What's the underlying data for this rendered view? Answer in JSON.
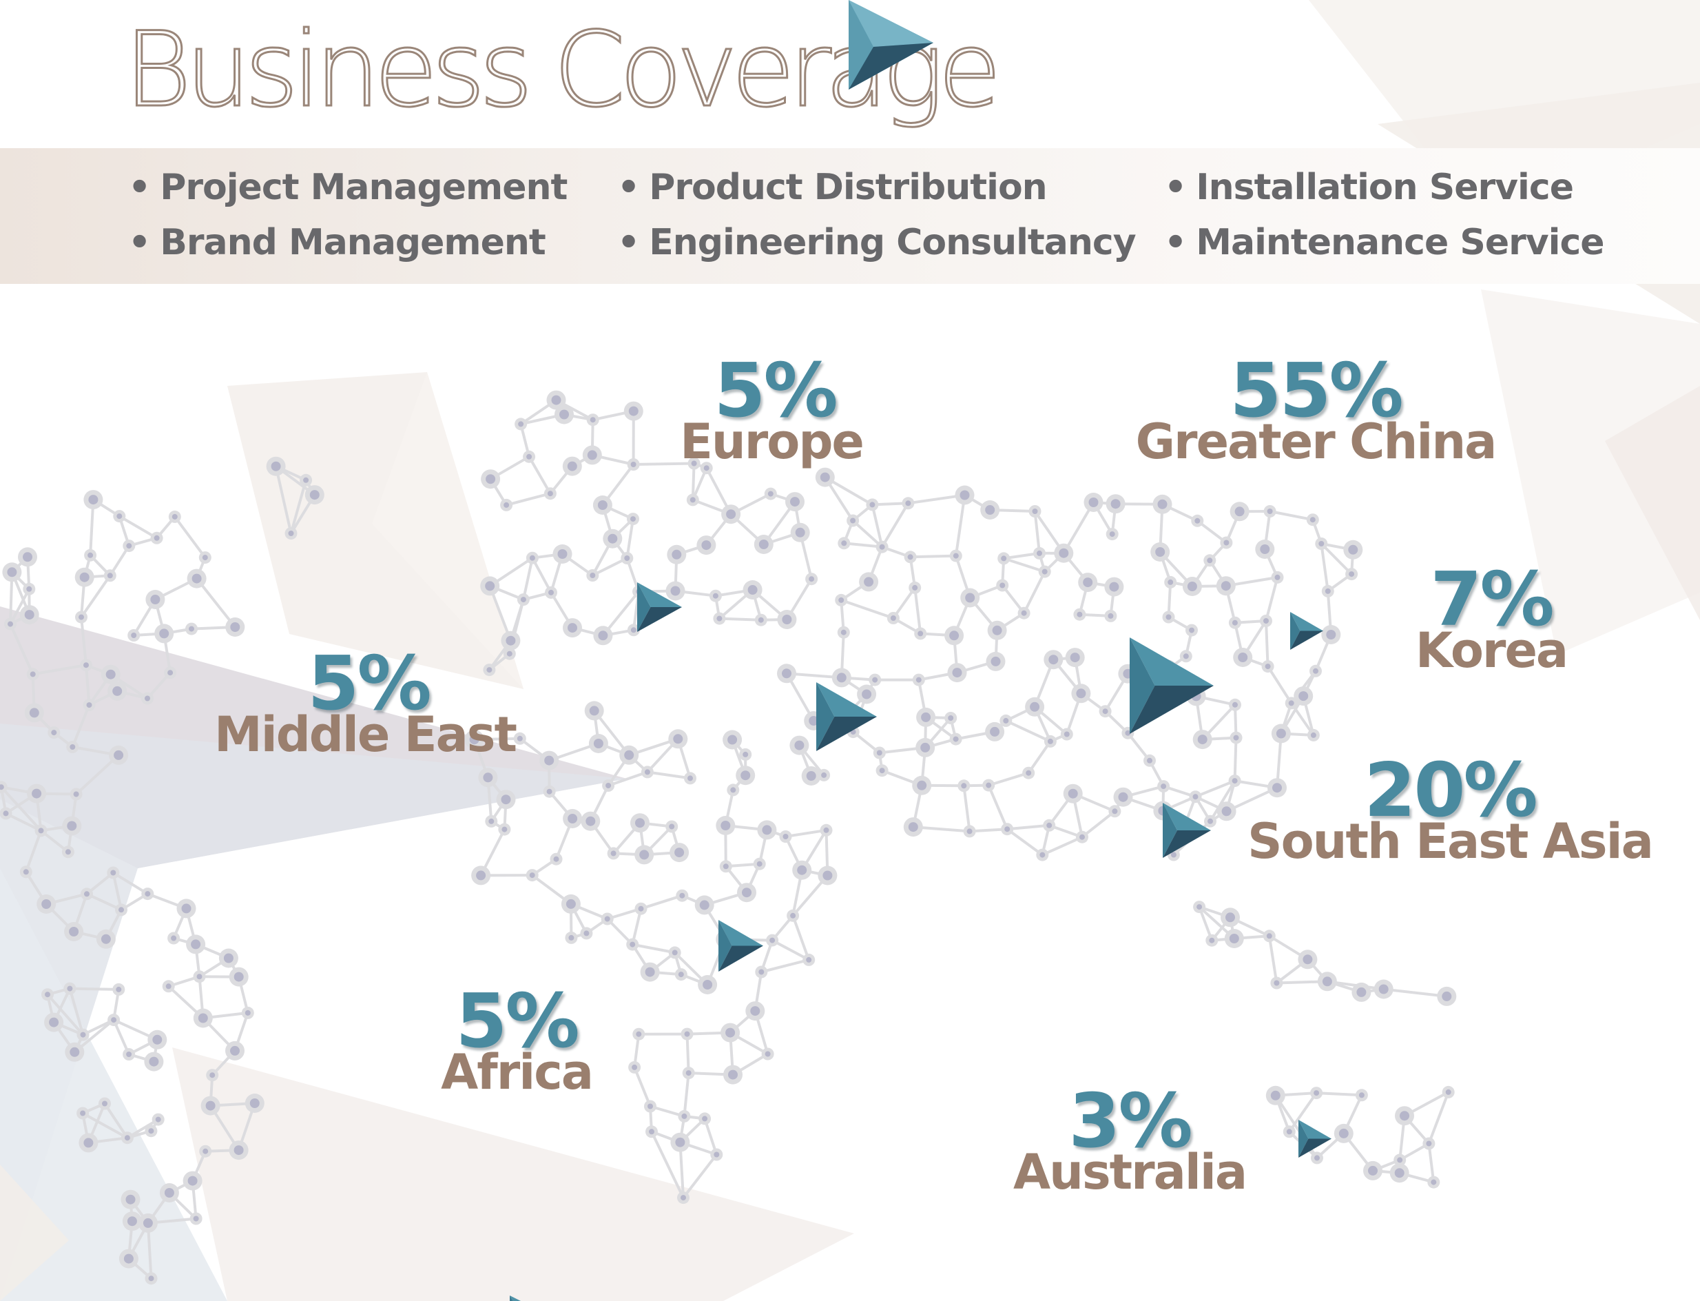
{
  "title": "Business Coverage",
  "services": [
    [
      "Project Management",
      "Brand Management"
    ],
    [
      "Product Distribution",
      "Engineering Consultancy"
    ],
    [
      "Installation Service",
      "Maintenance Service"
    ]
  ],
  "bullet": "•",
  "regions": [
    {
      "name": "Europe",
      "share": "5%"
    },
    {
      "name": "Greater China",
      "share": "55%"
    },
    {
      "name": "Middle East",
      "share": "5%"
    },
    {
      "name": "Korea",
      "share": "7%"
    },
    {
      "name": "South East Asia",
      "share": "20%"
    },
    {
      "name": "Africa",
      "share": "5%"
    },
    {
      "name": "Australia",
      "share": "3%"
    }
  ],
  "colors": {
    "percent": "#4a8a9f",
    "region": "#9a7f6e",
    "service": "#68686b",
    "network_line": "#dcdcdf",
    "network_node": "#b6b6ca",
    "marker_light": "#4f93a8",
    "marker_dark": "#2a4f64"
  },
  "icons": {
    "logo": "triangle-play-icon",
    "location_marker": "triangle-play-icon"
  }
}
